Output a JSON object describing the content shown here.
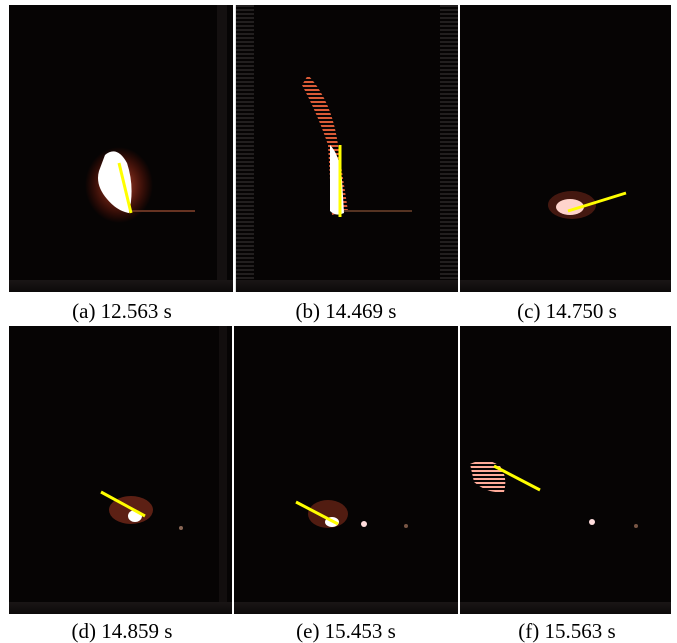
{
  "figure": {
    "panels": [
      {
        "label": "(a) 12.563 s"
      },
      {
        "label": "(b) 14.469 s"
      },
      {
        "label": "(c) 14.750 s"
      },
      {
        "label": "(d) 14.859 s"
      },
      {
        "label": "(e) 15.453 s"
      },
      {
        "label": "(f) 15.563 s"
      }
    ],
    "indicator_color": "#ffff00",
    "background_color": "#060404"
  }
}
